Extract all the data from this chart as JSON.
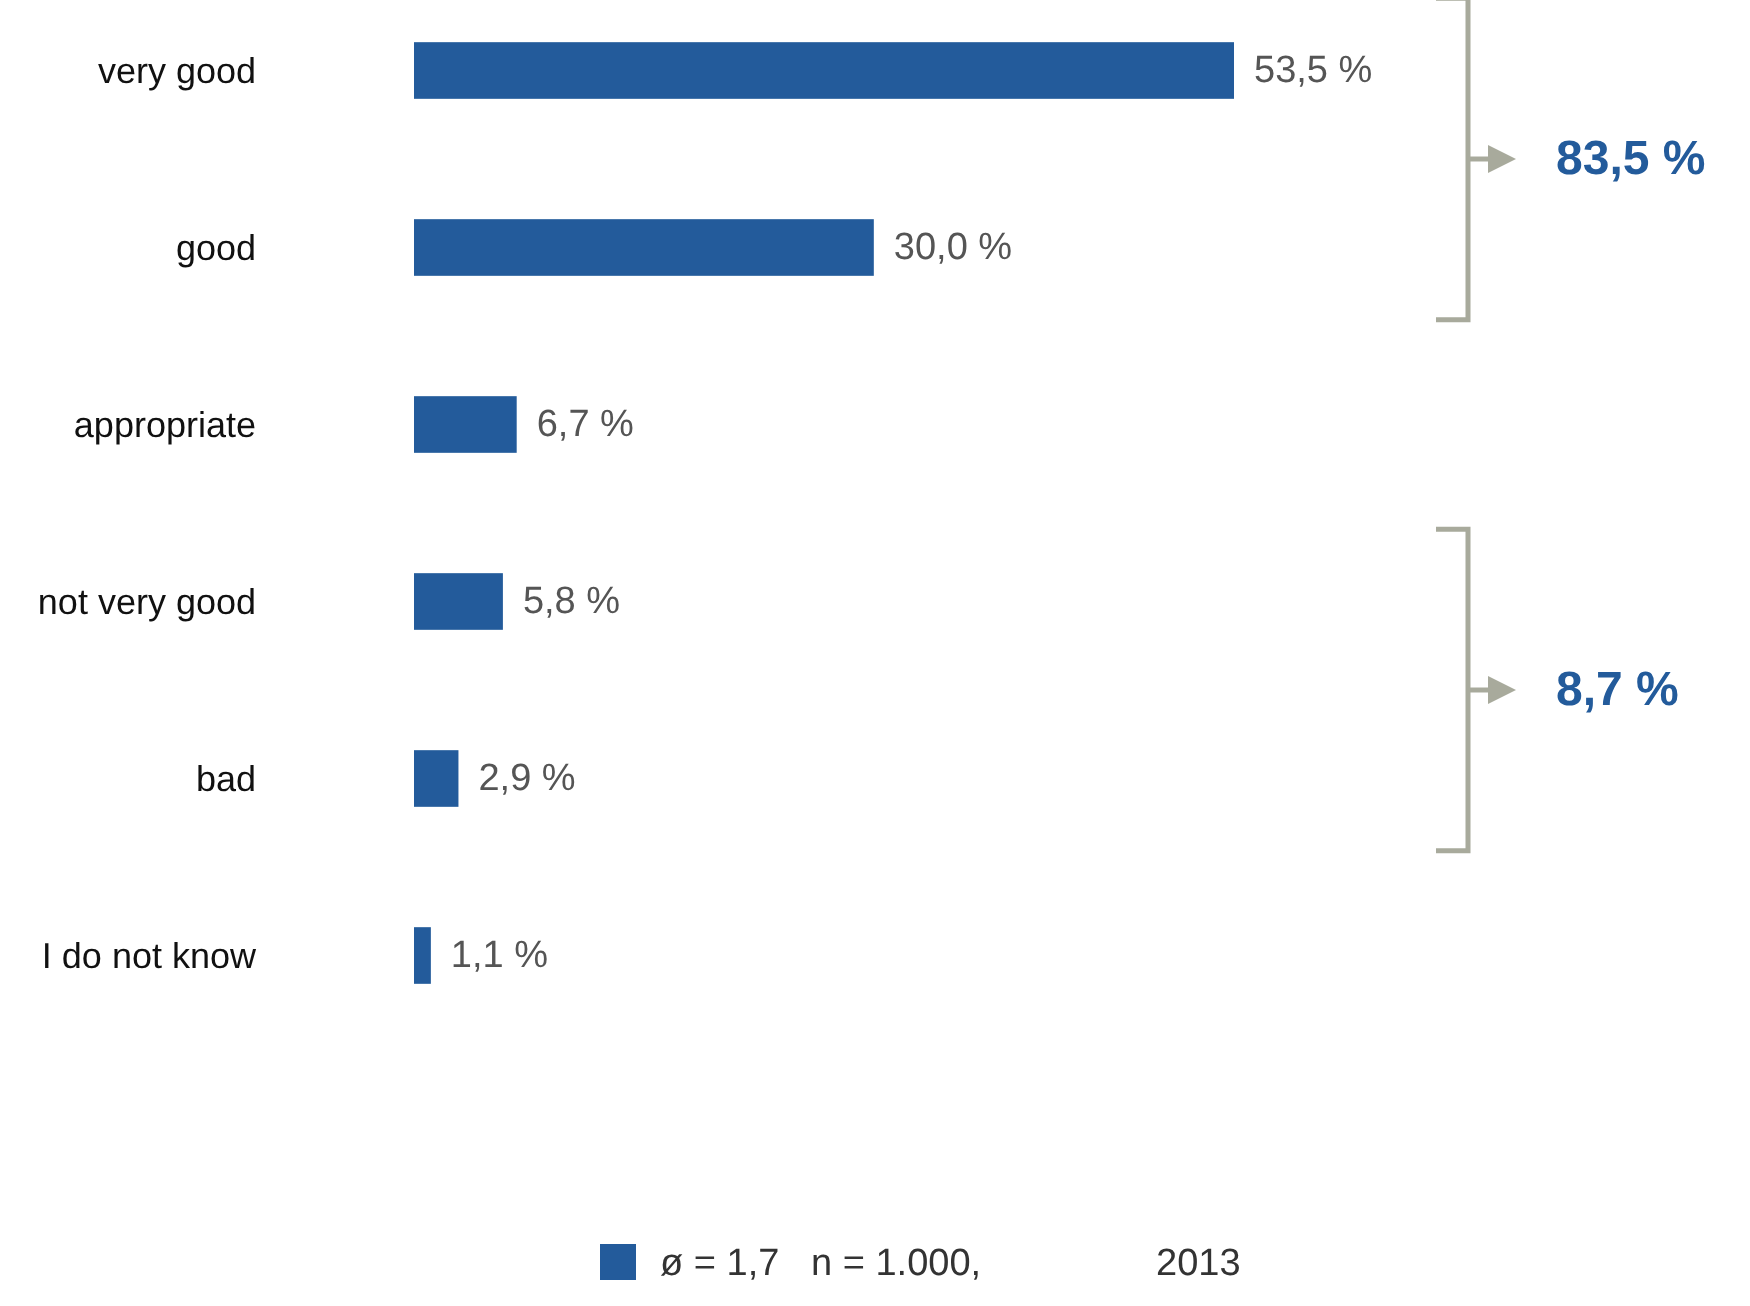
{
  "chart_data": {
    "type": "bar",
    "orientation": "horizontal",
    "categories": [
      "very good",
      "good",
      "appropriate",
      "not very good",
      "bad",
      "I do not know"
    ],
    "series": [
      {
        "name": "ø = 1,7   n = 1.000,",
        "color": "#235b9b",
        "values": [
          53.5,
          30.0,
          6.7,
          5.8,
          2.9,
          1.1
        ],
        "value_labels": [
          "53,5 %",
          "30,0 %",
          "6,7 %",
          "5,8 %",
          "2,9 %",
          "1,1 %"
        ]
      }
    ],
    "annotations": [
      "83,5 %",
      "8,7 %",
      "2013"
    ],
    "legend": "bottom"
  }
}
